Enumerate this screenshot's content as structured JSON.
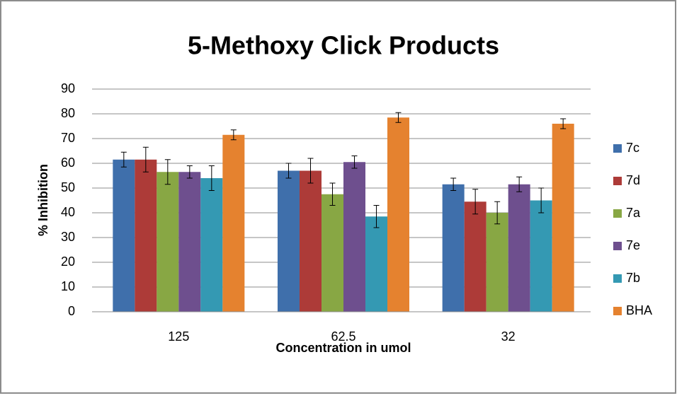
{
  "chart_data": {
    "type": "bar",
    "title": "5-Methoxy Click Products",
    "x_label": "Concentration in umol",
    "y_label": "% Inhibition",
    "categories": [
      "125",
      "62.5",
      "32"
    ],
    "series": [
      {
        "name": "7c",
        "color": "#3f6fab",
        "values": [
          61.5,
          57,
          51.5
        ],
        "errors": [
          3,
          3,
          2.5
        ]
      },
      {
        "name": "7d",
        "color": "#ad3b38",
        "values": [
          61.5,
          57,
          44.5
        ],
        "errors": [
          5,
          5,
          5
        ]
      },
      {
        "name": "7a",
        "color": "#88a744",
        "values": [
          56.5,
          47.5,
          40
        ],
        "errors": [
          5,
          4.5,
          4.5
        ]
      },
      {
        "name": "7e",
        "color": "#6e4f8e",
        "values": [
          56.5,
          60.5,
          51.5
        ],
        "errors": [
          2.5,
          2.5,
          3
        ]
      },
      {
        "name": "7b",
        "color": "#3499b3",
        "values": [
          54,
          38.5,
          45
        ],
        "errors": [
          5,
          4.5,
          5
        ]
      },
      {
        "name": "BHA",
        "color": "#e5822f",
        "values": [
          71.5,
          78.5,
          76
        ],
        "errors": [
          2,
          2,
          2
        ]
      }
    ],
    "ylim": [
      0,
      90
    ],
    "yticks": [
      0,
      10,
      20,
      30,
      40,
      50,
      60,
      70,
      80,
      90
    ],
    "grid": true,
    "legend": "right"
  }
}
